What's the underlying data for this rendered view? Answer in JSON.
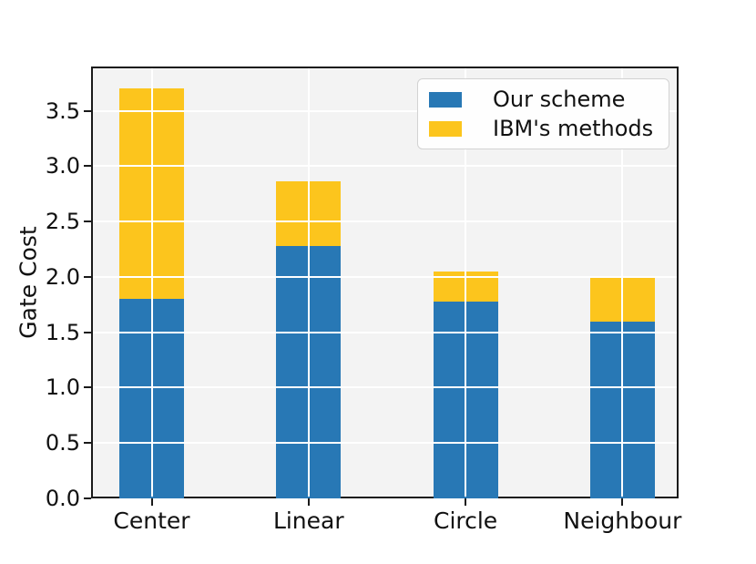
{
  "figure": {
    "background": "#ffffff",
    "plot_background": "#f3f3f3",
    "grid_color": "#ffffff",
    "spine_color": "#1a1a1a",
    "text_color": "#111111"
  },
  "chart_data": {
    "type": "bar",
    "stacked": true,
    "title": "",
    "xlabel": "",
    "ylabel": "Gate Cost",
    "categories": [
      "Center",
      "Linear",
      "Circle",
      "Neighbour"
    ],
    "series": [
      {
        "name": "Our scheme",
        "color": "#2878b5",
        "values": [
          1.8,
          2.28,
          1.78,
          1.6
        ]
      },
      {
        "name": "IBM's methods",
        "color": "#fcc51d",
        "values": [
          1.9,
          0.58,
          0.27,
          0.39
        ]
      }
    ],
    "stack_totals": [
      3.7,
      2.86,
      2.05,
      1.99
    ],
    "ylim": [
      0,
      3.9
    ],
    "yticks": [
      "0.0",
      "0.5",
      "1.0",
      "1.5",
      "2.0",
      "2.5",
      "3.0",
      "3.5"
    ],
    "grid": {
      "horizontal": true,
      "vertical": true,
      "color": "#ffffff",
      "drawn_above_bars": true
    },
    "legend": {
      "position": "upper right"
    }
  }
}
